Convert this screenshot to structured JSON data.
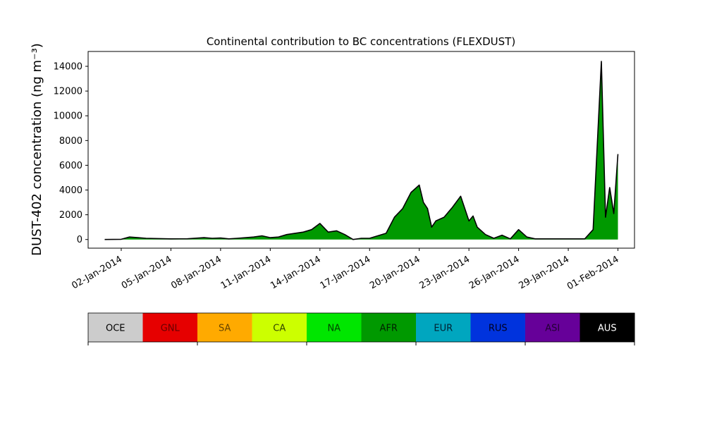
{
  "chart_data": {
    "type": "area",
    "title": "Continental contribution to BC concentrations (FLEXDUST)",
    "ylabel": "DUST-402 concentration (ng m⁻³)",
    "xlabel": "",
    "ylim": [
      -700,
      15200
    ],
    "yticks": [
      0,
      2000,
      4000,
      6000,
      8000,
      10000,
      12000,
      14000
    ],
    "x_range": [
      "2013-12-31",
      "2014-02-02"
    ],
    "x_tick_dates": [
      "2014-01-02",
      "2014-01-05",
      "2014-01-08",
      "2014-01-11",
      "2014-01-14",
      "2014-01-17",
      "2014-01-20",
      "2014-01-23",
      "2014-01-26",
      "2014-01-29",
      "2014-02-01"
    ],
    "x_tick_labels": [
      "02-Jan-2014",
      "05-Jan-2014",
      "08-Jan-2014",
      "11-Jan-2014",
      "14-Jan-2014",
      "17-Jan-2014",
      "20-Jan-2014",
      "23-Jan-2014",
      "26-Jan-2014",
      "29-Jan-2014",
      "01-Feb-2014"
    ],
    "grid": false,
    "legend_position": "bottom colorbar",
    "series": [
      {
        "name": "AFR",
        "color": "#009900",
        "x": [
          "2014-01-01",
          "2014-01-02",
          "2014-01-02T12:00",
          "2014-01-03",
          "2014-01-03T12:00",
          "2014-01-04",
          "2014-01-05",
          "2014-01-06",
          "2014-01-07",
          "2014-01-07T12:00",
          "2014-01-08",
          "2014-01-08T12:00",
          "2014-01-09",
          "2014-01-10",
          "2014-01-10T12:00",
          "2014-01-11",
          "2014-01-11T12:00",
          "2014-01-12",
          "2014-01-13",
          "2014-01-13T12:00",
          "2014-01-14",
          "2014-01-14T12:00",
          "2014-01-15",
          "2014-01-15T12:00",
          "2014-01-16",
          "2014-01-16T12:00",
          "2014-01-17",
          "2014-01-18",
          "2014-01-18T12:00",
          "2014-01-19",
          "2014-01-19T12:00",
          "2014-01-20",
          "2014-01-20T06:00",
          "2014-01-20T12:00",
          "2014-01-20T18:00",
          "2014-01-21",
          "2014-01-21T12:00",
          "2014-01-22",
          "2014-01-22T12:00",
          "2014-01-23",
          "2014-01-23T06:00",
          "2014-01-23T12:00",
          "2014-01-24",
          "2014-01-24T12:00",
          "2014-01-25",
          "2014-01-25T12:00",
          "2014-01-26",
          "2014-01-26T12:00",
          "2014-01-27",
          "2014-01-28",
          "2014-01-29",
          "2014-01-30",
          "2014-01-30T12:00",
          "2014-01-31",
          "2014-01-31T06:00",
          "2014-01-31T12:00",
          "2014-01-31T18:00",
          "2014-02-01"
        ],
        "values": [
          0,
          20,
          200,
          150,
          100,
          80,
          50,
          60,
          150,
          100,
          120,
          50,
          100,
          200,
          300,
          150,
          200,
          400,
          600,
          800,
          1300,
          600,
          700,
          400,
          0,
          100,
          100,
          500,
          1800,
          2500,
          3800,
          4400,
          3000,
          2500,
          1000,
          1500,
          1800,
          2600,
          3500,
          1500,
          1900,
          1000,
          400,
          100,
          350,
          50,
          800,
          200,
          50,
          50,
          50,
          50,
          800,
          14400,
          1800,
          4200,
          2100,
          6900
        ]
      }
    ],
    "legend_entries": [
      {
        "name": "OCE",
        "color": "#cccccc",
        "text_color": "#000000"
      },
      {
        "name": "GNL",
        "color": "#e60000",
        "text_color": "#660000"
      },
      {
        "name": "SA",
        "color": "#ffaa00",
        "text_color": "#664400"
      },
      {
        "name": "CA",
        "color": "#ccff00",
        "text_color": "#334400"
      },
      {
        "name": "NA",
        "color": "#00e600",
        "text_color": "#004400"
      },
      {
        "name": "AFR",
        "color": "#009900",
        "text_color": "#002200"
      },
      {
        "name": "EUR",
        "color": "#00a6bf",
        "text_color": "#002233"
      },
      {
        "name": "RUS",
        "color": "#0033dd",
        "text_color": "#000022"
      },
      {
        "name": "ASI",
        "color": "#660099",
        "text_color": "#220033"
      },
      {
        "name": "AUS",
        "color": "#000000",
        "text_color": "#ffffff"
      }
    ]
  }
}
